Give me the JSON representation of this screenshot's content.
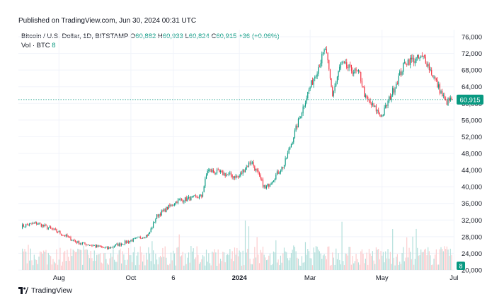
{
  "header": {
    "published": "Published on TradingView.com, Jun 30, 2024 00:31 UTC"
  },
  "legend": {
    "symbol": "Bitcoin / U.S. Dollar, 1D, BITSTAMP",
    "o_label": "O",
    "o_value": "60,882",
    "h_label": "H",
    "h_value": "60,933",
    "l_label": "L",
    "l_value": "60,824",
    "c_label": "C",
    "c_value": "60,915",
    "change": "+36 (+0.06%)",
    "vol_label": "Vol · BTC",
    "vol_value": "8"
  },
  "footer": {
    "brand": "TradingView"
  },
  "colors": {
    "up": "#089981",
    "down": "#f23645",
    "up_vol": "#b2dfdb",
    "down_vol": "#fccbcd",
    "grid": "#f0f3fa",
    "price_line": "#089981"
  },
  "chart_data": {
    "type": "candlestick",
    "title": "",
    "x_ticks": [
      "Aug",
      "Oct",
      "6",
      "2024",
      "Mar",
      "May",
      "Jul"
    ],
    "y_ticks": [
      "76,000",
      "72,000",
      "68,000",
      "64,000",
      "60,000",
      "56,000",
      "52,000",
      "48,000",
      "44,000",
      "40,000",
      "36,000",
      "32,000",
      "28,000",
      "24,000",
      "20,000"
    ],
    "ylim": [
      20000,
      76000
    ],
    "last_price": 60915,
    "last_price_label": "60,915",
    "last_volume_label": "8",
    "keypoints": [
      {
        "date": "2023-06-30",
        "close": 30500
      },
      {
        "date": "2023-07-13",
        "close": 31300
      },
      {
        "date": "2023-07-31",
        "close": 29200
      },
      {
        "date": "2023-08-17",
        "close": 26600
      },
      {
        "date": "2023-09-11",
        "close": 25200
      },
      {
        "date": "2023-09-30",
        "close": 27000
      },
      {
        "date": "2023-10-16",
        "close": 28500
      },
      {
        "date": "2023-10-23",
        "close": 33000
      },
      {
        "date": "2023-11-09",
        "close": 36600
      },
      {
        "date": "2023-11-30",
        "close": 37700
      },
      {
        "date": "2023-12-05",
        "close": 44000
      },
      {
        "date": "2023-12-31",
        "close": 42300
      },
      {
        "date": "2024-01-11",
        "close": 46200
      },
      {
        "date": "2024-01-23",
        "close": 39500
      },
      {
        "date": "2024-02-08",
        "close": 45300
      },
      {
        "date": "2024-02-28",
        "close": 62500
      },
      {
        "date": "2024-03-14",
        "close": 73100
      },
      {
        "date": "2024-03-20",
        "close": 62000
      },
      {
        "date": "2024-03-27",
        "close": 69500
      },
      {
        "date": "2024-04-12",
        "close": 67000
      },
      {
        "date": "2024-04-17",
        "close": 61200
      },
      {
        "date": "2024-05-01",
        "close": 57000
      },
      {
        "date": "2024-05-15",
        "close": 66200
      },
      {
        "date": "2024-05-21",
        "close": 70100
      },
      {
        "date": "2024-06-06",
        "close": 71000
      },
      {
        "date": "2024-06-24",
        "close": 60200
      },
      {
        "date": "2024-06-29",
        "close": 60915
      }
    ]
  }
}
